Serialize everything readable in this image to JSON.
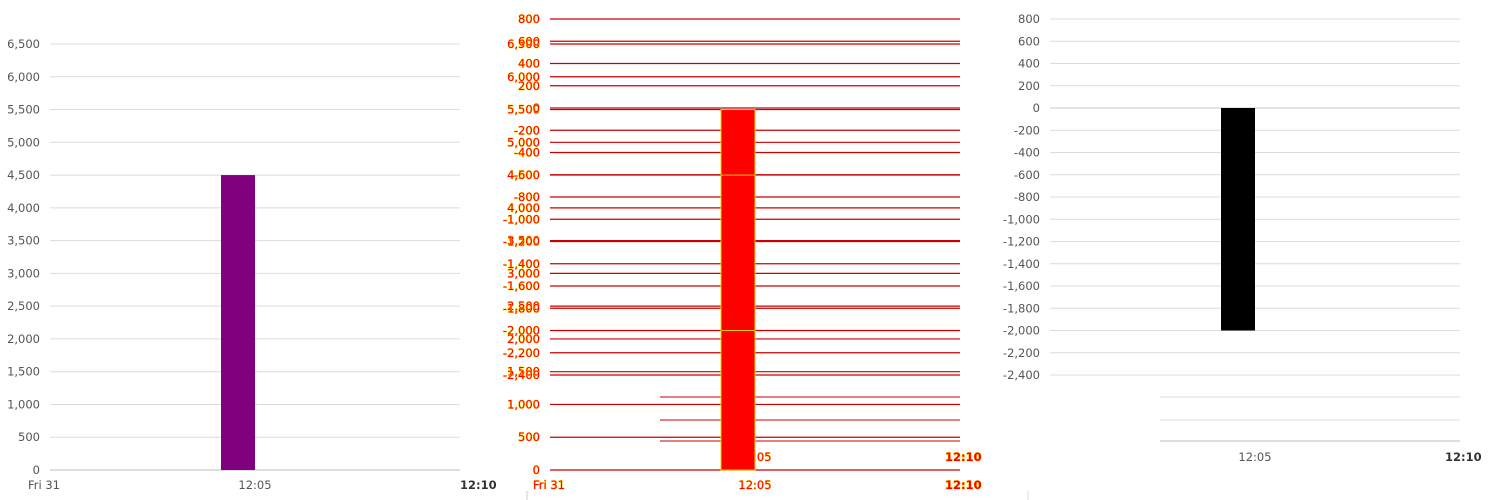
{
  "chart_data": [
    {
      "type": "bar",
      "title": "",
      "xlabel": "",
      "ylabel": "",
      "ylim": [
        0,
        6500
      ],
      "yticks": [
        0,
        500,
        1000,
        1500,
        2000,
        2500,
        3000,
        3500,
        4000,
        4500,
        5000,
        5500,
        6000,
        6500
      ],
      "x_tick_labels": [
        {
          "label": "Fri 31",
          "bold": false
        },
        {
          "label": "12:05",
          "bold": false
        },
        {
          "label": "12:10",
          "bold": true
        }
      ],
      "series": [
        {
          "values": [
            4500
          ],
          "color": "#800080"
        }
      ],
      "categories": [
        "12:05"
      ],
      "grid": true
    },
    {
      "type": "bar",
      "title": "",
      "xlabel": "",
      "ylabel": "",
      "ylim": [
        0,
        6500
      ],
      "yticks": [
        0,
        500,
        1000,
        1500,
        2000,
        2500,
        3000,
        3500,
        4000,
        4500,
        5000,
        5500,
        6000,
        6500
      ],
      "secondary_yticks": [
        800,
        600,
        400,
        200,
        0,
        -200,
        -400,
        -600,
        -800,
        -1000,
        -1200,
        -1400,
        -1600,
        -1800,
        -2000,
        -2200,
        -2400
      ],
      "x_tick_labels": [
        {
          "label": "Fri 31",
          "bold": false
        },
        {
          "label": "12:05",
          "bold": false
        },
        {
          "label": "12:10",
          "bold": true
        }
      ],
      "series": [
        {
          "values": [
            5500
          ],
          "color": "#ff0000"
        }
      ],
      "categories": [
        "12:05"
      ],
      "grid": true
    },
    {
      "type": "bar",
      "title": "",
      "xlabel": "",
      "ylabel": "",
      "ylim": [
        -2400,
        800
      ],
      "yticks": [
        800,
        600,
        400,
        200,
        0,
        -200,
        -400,
        -600,
        -800,
        -1000,
        -1200,
        -1400,
        -1600,
        -1800,
        -2000,
        -2200,
        -2400
      ],
      "x_tick_labels": [
        {
          "label": "12:05",
          "bold": false
        },
        {
          "label": "12:10",
          "bold": true
        }
      ],
      "series": [
        {
          "values": [
            -2000
          ],
          "color": "#000000"
        }
      ],
      "categories": [
        "12:05"
      ],
      "grid": true
    }
  ]
}
